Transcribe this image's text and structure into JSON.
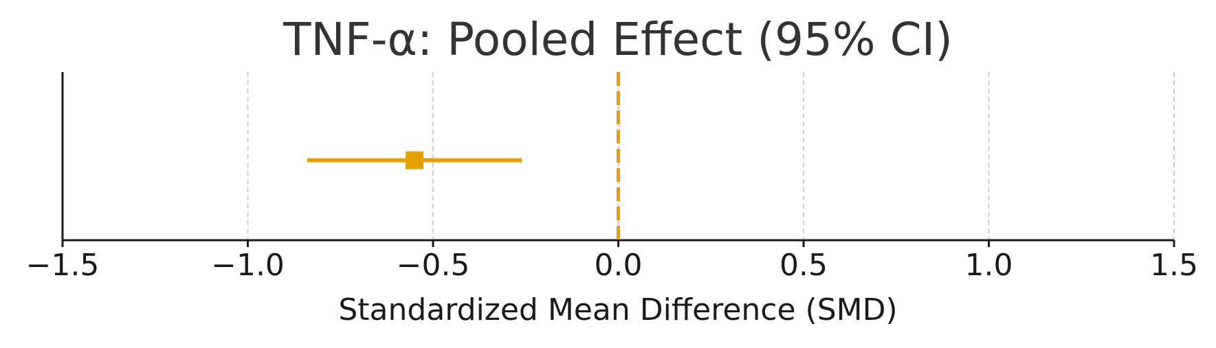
{
  "chart_data": {
    "type": "forest",
    "title": "TNF-α: Pooled Effect (95% CI)",
    "xlabel": "Standardized Mean Difference (SMD)",
    "estimate": -0.55,
    "ci": [
      -0.84,
      -0.26
    ],
    "color": "#E69F00",
    "reference_line": 0,
    "xlim": [
      -1.5,
      1.5
    ],
    "xticks": [
      {
        "value": -1.5,
        "label": "−1.5"
      },
      {
        "value": -1.0,
        "label": "−1.0"
      },
      {
        "value": -0.5,
        "label": "−0.5"
      },
      {
        "value": 0,
        "label": "0.0"
      },
      0.5,
      {
        "value": 1.0,
        "label": "1.0"
      },
      1.5
    ],
    "grid": true
  }
}
